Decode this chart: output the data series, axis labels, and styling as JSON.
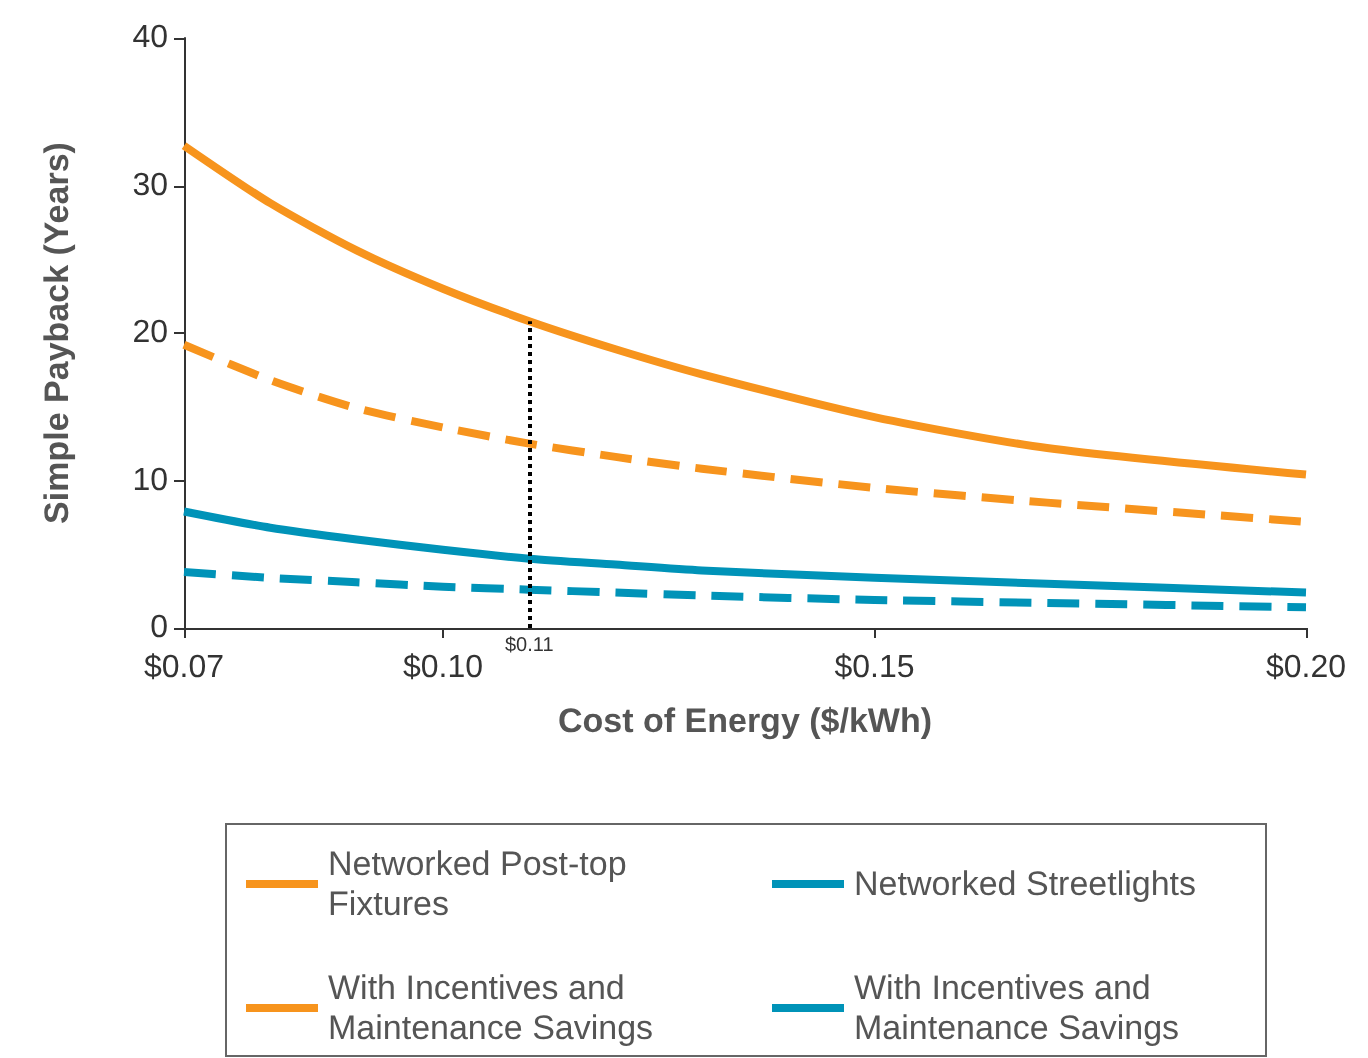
{
  "chart_data": {
    "type": "line",
    "xlabel": "Cost of Energy ($/kWh)",
    "ylabel": "Simple Payback (Years)",
    "x": [
      0.07,
      0.08,
      0.09,
      0.1,
      0.11,
      0.12,
      0.13,
      0.15,
      0.17,
      0.2
    ],
    "series": [
      {
        "name": "Networked Post-top Fixtures",
        "color": "#f7941d",
        "line_style": "solid",
        "values": [
          32.7,
          28.8,
          25.6,
          23.0,
          20.8,
          18.9,
          17.2,
          14.3,
          12.2,
          10.4
        ]
      },
      {
        "name": "Networked Streetlights",
        "color": "#0093b8",
        "line_style": "solid",
        "values": [
          7.9,
          6.8,
          6.0,
          5.3,
          4.7,
          4.3,
          3.9,
          3.4,
          3.0,
          2.4
        ]
      },
      {
        "name": "With Incentives and Maintenance Savings",
        "color": "#f7941d",
        "line_style": "dashed",
        "values": [
          19.2,
          16.8,
          14.9,
          13.6,
          12.5,
          11.6,
          10.8,
          9.5,
          8.5,
          7.2
        ]
      },
      {
        "name": "With Incentives and Maintenance Savings",
        "color": "#0093b8",
        "line_style": "dashed",
        "values": [
          3.8,
          3.4,
          3.1,
          2.8,
          2.6,
          2.4,
          2.2,
          1.9,
          1.7,
          1.4
        ]
      }
    ],
    "xlim": [
      0.07,
      0.2
    ],
    "xticks": [
      {
        "value": 0.07,
        "label": "$0.07"
      },
      {
        "value": 0.1,
        "label": "$0.10"
      },
      {
        "value": 0.15,
        "label": "$0.15"
      },
      {
        "value": 0.2,
        "label": "$0.20"
      }
    ],
    "ylim": [
      0,
      40
    ],
    "yticks": [
      0,
      10,
      20,
      30,
      40
    ],
    "ref_lines": [
      {
        "axis": "x",
        "value": 0.11,
        "label": "$0.11",
        "line_style": "dotted",
        "color": "#000000"
      }
    ],
    "grid": false,
    "legend": "bottom",
    "marker": "none"
  }
}
